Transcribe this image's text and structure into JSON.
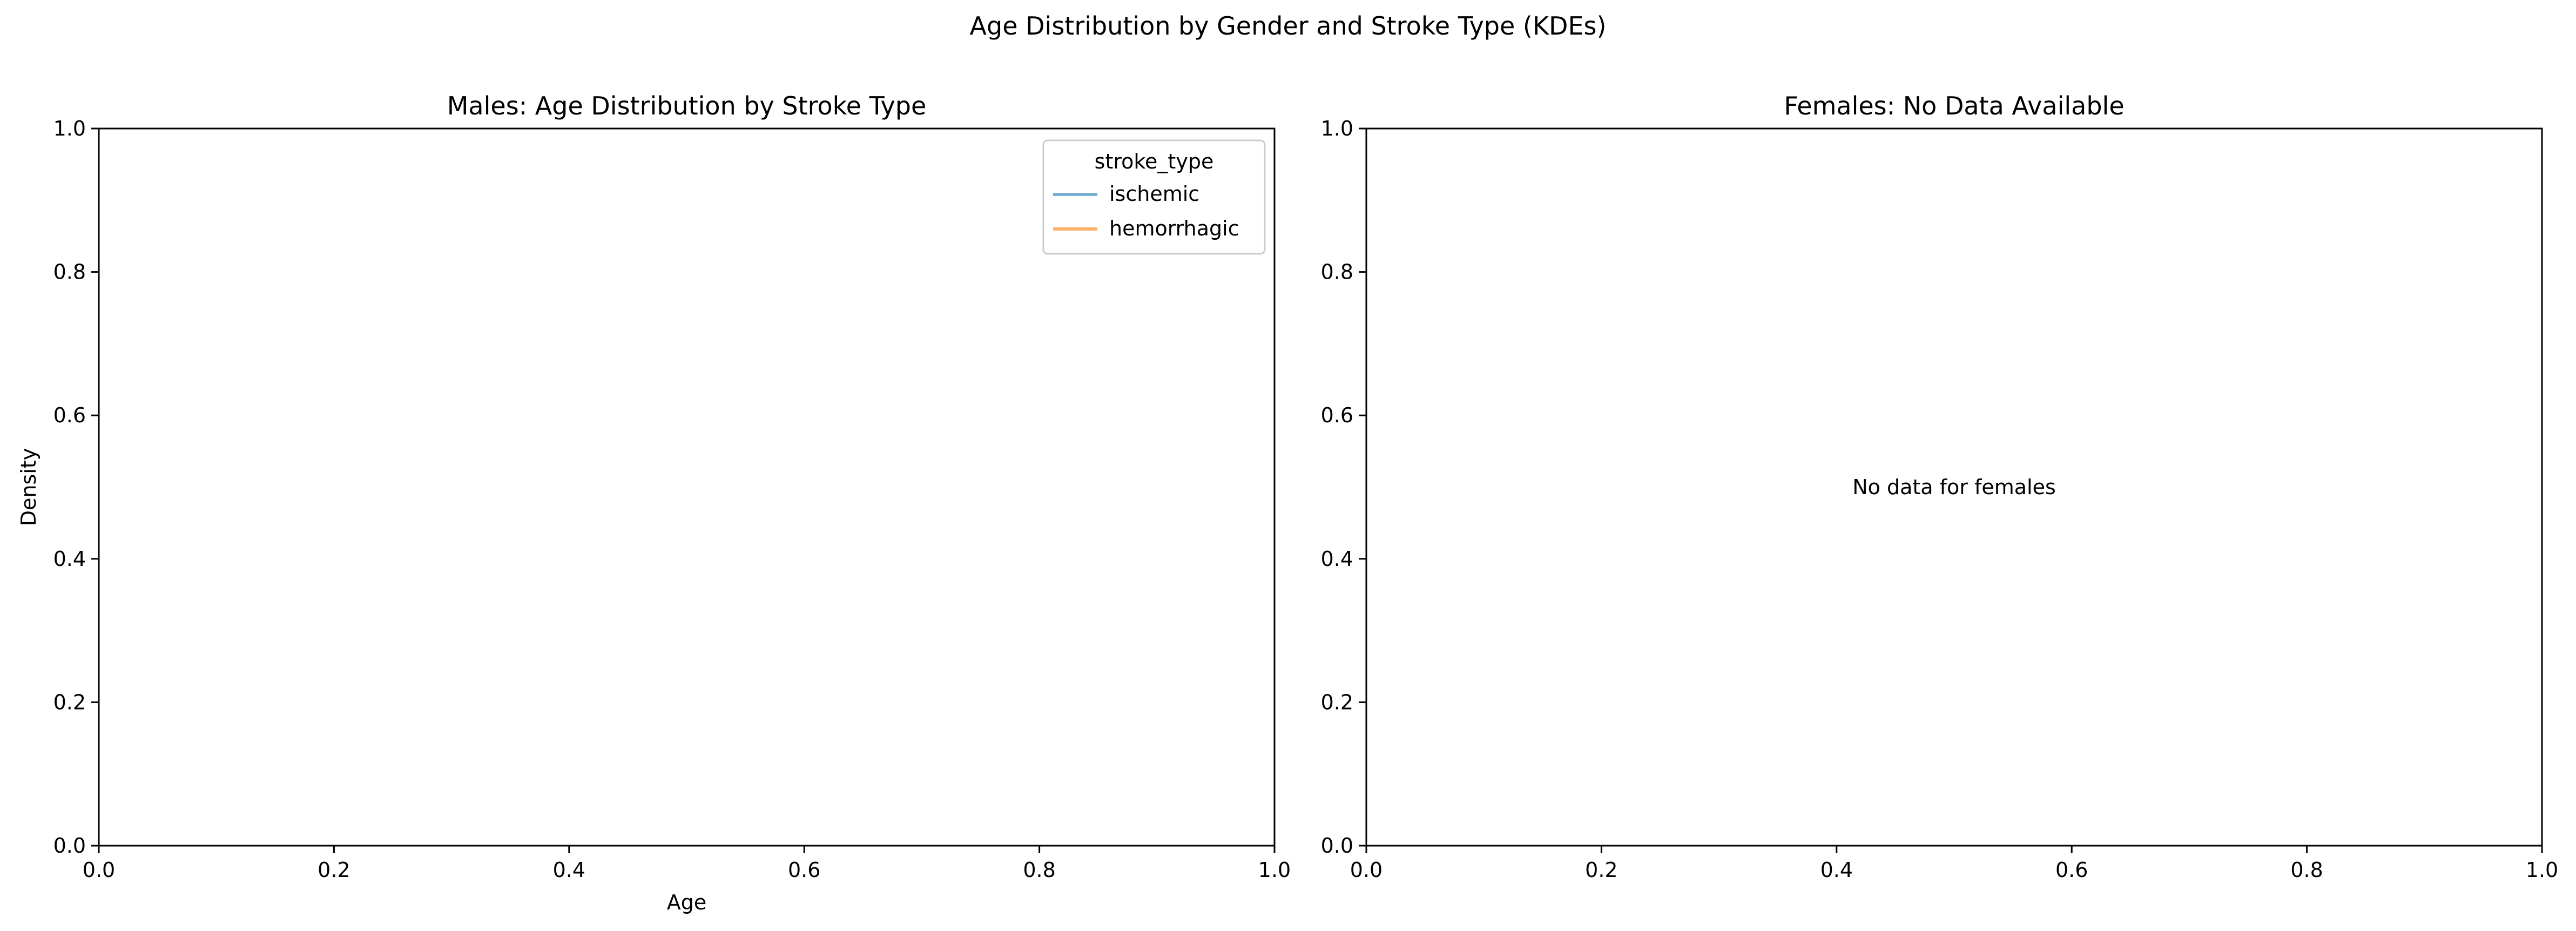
{
  "figure": {
    "suptitle": "Age Distribution by Gender and Stroke Type (KDEs)"
  },
  "chart_data": [
    {
      "type": "line",
      "title": "Males: Age Distribution by Stroke Type",
      "xlabel": "Age",
      "ylabel": "Density",
      "xlim": [
        0.0,
        1.0
      ],
      "ylim": [
        0.0,
        1.0
      ],
      "xticks": [
        "0.0",
        "0.2",
        "0.4",
        "0.6",
        "0.8",
        "1.0"
      ],
      "yticks": [
        "0.0",
        "0.2",
        "0.4",
        "0.6",
        "0.8",
        "1.0"
      ],
      "grid": false,
      "legend": {
        "title": "stroke_type",
        "placement": "upper right",
        "entries": [
          {
            "label": "ischemic",
            "color": "#1f77b4"
          },
          {
            "label": "hemorrhagic",
            "color": "#ff7f0e"
          }
        ]
      },
      "series": [
        {
          "name": "ischemic",
          "color": "#1f77b4",
          "x": [],
          "y": []
        },
        {
          "name": "hemorrhagic",
          "color": "#ff7f0e",
          "x": [],
          "y": []
        }
      ]
    },
    {
      "type": "line",
      "title": "Females: No Data Available",
      "xlabel": "",
      "ylabel": "",
      "xlim": [
        0.0,
        1.0
      ],
      "ylim": [
        0.0,
        1.0
      ],
      "xticks": [
        "0.0",
        "0.2",
        "0.4",
        "0.6",
        "0.8",
        "1.0"
      ],
      "yticks": [
        "0.0",
        "0.2",
        "0.4",
        "0.6",
        "0.8",
        "1.0"
      ],
      "grid": false,
      "annotation": {
        "text": "No data for females",
        "x": 0.5,
        "y": 0.5
      },
      "series": []
    }
  ]
}
